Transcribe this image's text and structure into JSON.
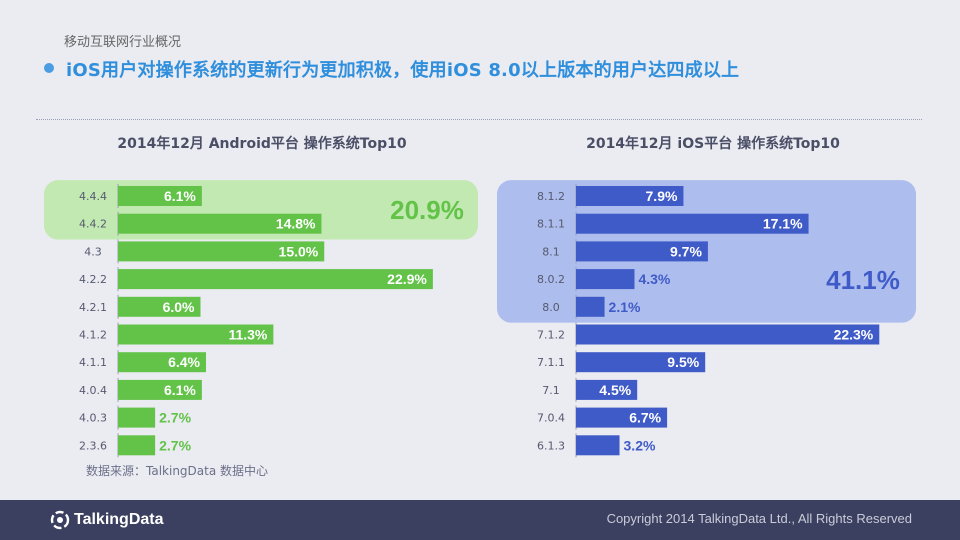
{
  "page": {
    "subtitle": "移动互联网行业概况",
    "headline": "iOS用户对操作系统的更新行为更加积极，使用iOS 8.0以上版本的用户达四成以上",
    "source": "数据来源：TalkingData 数据中心",
    "logo_text": "TalkingData",
    "copyright": "Copyright 2014 TalkingData Ltd., All Rights Reserved"
  },
  "colors": {
    "android_bar": "#62c348",
    "android_highlight": "#c3e9b2",
    "android_total_text": "#62c348",
    "ios_bar": "#3f5bc8",
    "ios_highlight": "#adbdee",
    "ios_total_text": "#3f5bc8"
  },
  "chart_data": [
    {
      "type": "bar",
      "orientation": "horizontal",
      "title": "2014年12月 Android平台 操作系统Top10",
      "categories": [
        "4.4.4",
        "4.4.2",
        "4.3",
        "4.2.2",
        "4.2.1",
        "4.1.2",
        "4.1.1",
        "4.0.4",
        "4.0.3",
        "2.3.6"
      ],
      "values": [
        6.1,
        14.8,
        15.0,
        22.9,
        6.0,
        11.3,
        6.4,
        6.1,
        2.7,
        2.7
      ],
      "value_labels": [
        "6.1%",
        "14.8%",
        "15.0%",
        "22.9%",
        "6.0%",
        "11.3%",
        "6.4%",
        "6.1%",
        "2.7%",
        "2.7%"
      ],
      "highlight": {
        "categories": [
          "4.4.4",
          "4.4.2"
        ],
        "total_label": "20.9%"
      },
      "xlim": [
        0,
        25
      ]
    },
    {
      "type": "bar",
      "orientation": "horizontal",
      "title": "2014年12月 iOS平台 操作系统Top10",
      "categories": [
        "8.1.2",
        "8.1.1",
        "8.1",
        "8.0.2",
        "8.0",
        "7.1.2",
        "7.1.1",
        "7.1",
        "7.0.4",
        "6.1.3"
      ],
      "values": [
        7.9,
        17.1,
        9.7,
        4.3,
        2.1,
        22.3,
        9.5,
        4.5,
        6.7,
        3.2
      ],
      "value_labels": [
        "7.9%",
        "17.1%",
        "9.7%",
        "4.3%",
        "2.1%",
        "22.3%",
        "9.5%",
        "4.5%",
        "6.7%",
        "3.2%"
      ],
      "highlight": {
        "categories": [
          "8.1.2",
          "8.1.1",
          "8.1",
          "8.0.2",
          "8.0"
        ],
        "total_label": "41.1%"
      },
      "xlim": [
        0,
        25
      ]
    }
  ]
}
